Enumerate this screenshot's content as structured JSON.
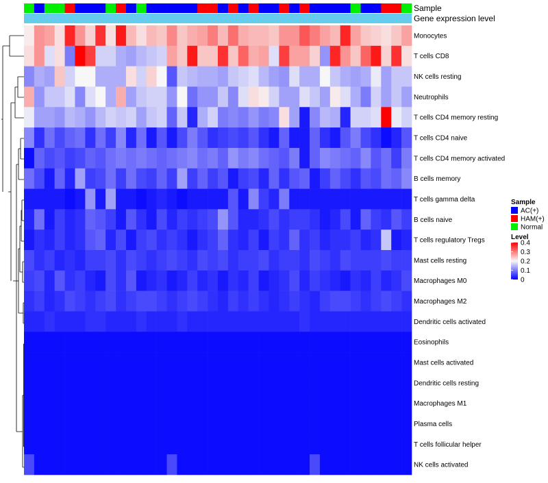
{
  "chart_data": {
    "type": "heatmap",
    "title": "",
    "annotation_tracks": [
      "Sample",
      "Gene expression level"
    ],
    "sample_groups": [
      {
        "name": "AC(+)",
        "color": "#0000ff"
      },
      {
        "name": "HAM(+)",
        "color": "#ff0000"
      },
      {
        "name": "Normal",
        "color": "#00ee00"
      }
    ],
    "column_samples": [
      "N",
      "A",
      "N",
      "N",
      "H",
      "A",
      "A",
      "A",
      "N",
      "H",
      "A",
      "N",
      "A",
      "A",
      "A",
      "A",
      "A",
      "H",
      "H",
      "A",
      "H",
      "A",
      "H",
      "A",
      "A",
      "H",
      "A",
      "H",
      "A",
      "A",
      "A",
      "A",
      "N",
      "A",
      "A",
      "H",
      "H",
      "N"
    ],
    "expression_bar_color": "#66ccee",
    "legend": {
      "sample_title": "Sample",
      "level_title": "Level",
      "level_ticks": [
        "0.4",
        "0.3",
        "0.2",
        "0.1",
        "0"
      ],
      "colors": {
        "low": "#0000ff",
        "mid": "#f7f7f7",
        "high": "#ff0000"
      },
      "range": [
        0,
        0.4
      ]
    },
    "rows": [
      "Monocytes",
      "T cells CD8",
      "NK cells resting",
      "Neutrophils",
      "T cells CD4 memory resting",
      "T cells CD4 naive",
      "T cells CD4 memory activated",
      "B cells memory",
      "T cells gamma delta",
      "B cells naive",
      "T cells regulatory  Tregs",
      "Mast cells resting",
      "Macrophages M0",
      "Macrophages M2",
      "Dendritic cells activated",
      "Eosinophils",
      "Mast cells activated",
      "Dendritic cells resting",
      "Macrophages M1",
      "Plasma cells",
      "T cells follicular helper",
      "NK cells activated"
    ],
    "values": [
      [
        0.21,
        0.28,
        0.27,
        0.22,
        0.37,
        0.28,
        0.23,
        0.36,
        0.22,
        0.38,
        0.25,
        0.22,
        0.25,
        0.24,
        0.29,
        0.24,
        0.26,
        0.27,
        0.3,
        0.25,
        0.31,
        0.26,
        0.25,
        0.25,
        0.24,
        0.28,
        0.28,
        0.33,
        0.3,
        0.27,
        0.25,
        0.37,
        0.27,
        0.24,
        0.23,
        0.22,
        0.24,
        0.27
      ],
      [
        0.22,
        0.28,
        0.18,
        0.22,
        0.1,
        0.4,
        0.35,
        0.17,
        0.17,
        0.14,
        0.13,
        0.15,
        0.16,
        0.17,
        0.27,
        0.24,
        0.38,
        0.24,
        0.24,
        0.36,
        0.24,
        0.32,
        0.26,
        0.27,
        0.18,
        0.35,
        0.27,
        0.27,
        0.23,
        0.12,
        0.37,
        0.28,
        0.24,
        0.32,
        0.38,
        0.23,
        0.36,
        0.22
      ],
      [
        0.11,
        0.14,
        0.13,
        0.24,
        0.17,
        0.2,
        0.2,
        0.14,
        0.14,
        0.14,
        0.22,
        0.17,
        0.23,
        0.2,
        0.07,
        0.16,
        0.15,
        0.14,
        0.14,
        0.13,
        0.16,
        0.17,
        0.18,
        0.15,
        0.13,
        0.12,
        0.18,
        0.14,
        0.14,
        0.2,
        0.16,
        0.14,
        0.13,
        0.14,
        0.19,
        0.13,
        0.16,
        0.16
      ],
      [
        0.26,
        0.12,
        0.16,
        0.16,
        0.18,
        0.11,
        0.18,
        0.2,
        0.14,
        0.26,
        0.13,
        0.16,
        0.17,
        0.17,
        0.12,
        0.2,
        0.09,
        0.12,
        0.12,
        0.16,
        0.11,
        0.18,
        0.22,
        0.21,
        0.17,
        0.13,
        0.13,
        0.18,
        0.16,
        0.13,
        0.21,
        0.18,
        0.14,
        0.1,
        0.17,
        0.13,
        0.16,
        0.13
      ],
      [
        0.19,
        0.13,
        0.13,
        0.12,
        0.15,
        0.14,
        0.12,
        0.15,
        0.17,
        0.16,
        0.17,
        0.13,
        0.16,
        0.17,
        0.08,
        0.16,
        0.03,
        0.14,
        0.17,
        0.1,
        0.11,
        0.1,
        0.12,
        0.1,
        0.11,
        0.22,
        0.13,
        0.02,
        0.11,
        0.15,
        0.14,
        0.03,
        0.17,
        0.17,
        0.18,
        0.4,
        0.19,
        0.17
      ],
      [
        0.11,
        0.04,
        0.09,
        0.06,
        0.08,
        0.09,
        0.04,
        0.09,
        0.05,
        0.11,
        0.03,
        0.09,
        0.02,
        0.07,
        0.02,
        0.06,
        0.1,
        0.07,
        0.04,
        0.05,
        0.06,
        0.05,
        0.07,
        0.04,
        0.02,
        0.08,
        0.02,
        0.02,
        0.08,
        0.04,
        0.02,
        0.07,
        0.1,
        0.06,
        0.04,
        0.01,
        0.03,
        0.07
      ],
      [
        0.01,
        0.08,
        0.06,
        0.07,
        0.05,
        0.06,
        0.08,
        0.07,
        0.09,
        0.1,
        0.09,
        0.1,
        0.09,
        0.08,
        0.09,
        0.1,
        0.11,
        0.09,
        0.1,
        0.08,
        0.12,
        0.1,
        0.11,
        0.09,
        0.08,
        0.07,
        0.1,
        0.02,
        0.08,
        0.11,
        0.1,
        0.09,
        0.08,
        0.11,
        0.07,
        0.09,
        0.05,
        0.1
      ],
      [
        0.09,
        0.06,
        0.02,
        0.08,
        0.03,
        0.13,
        0.05,
        0.06,
        0.09,
        0.05,
        0.09,
        0.06,
        0.05,
        0.08,
        0.05,
        0.13,
        0.05,
        0.08,
        0.05,
        0.07,
        0.02,
        0.05,
        0.06,
        0.03,
        0.08,
        0.04,
        0.07,
        0.08,
        0.02,
        0.05,
        0.08,
        0.06,
        0.04,
        0.07,
        0.06,
        0.09,
        0.08,
        0.11
      ],
      [
        0.02,
        0.02,
        0.02,
        0.02,
        0.01,
        0.02,
        0.12,
        0.02,
        0.13,
        0.02,
        0.02,
        0.01,
        0.02,
        0.03,
        0.02,
        0.01,
        0.02,
        0.02,
        0.02,
        0.02,
        0.07,
        0.02,
        0.11,
        0.05,
        0.03,
        0.1,
        0.02,
        0.02,
        0.02,
        0.02,
        0.02,
        0.02,
        0.02,
        0.02,
        0.02,
        0.02,
        0.02,
        0.02
      ],
      [
        0.03,
        0.09,
        0.02,
        0.05,
        0.03,
        0.04,
        0.08,
        0.07,
        0.05,
        0.02,
        0.07,
        0.04,
        0.02,
        0.06,
        0.03,
        0.05,
        0.04,
        0.05,
        0.06,
        0.12,
        0.07,
        0.03,
        0.03,
        0.04,
        0.06,
        0.04,
        0.05,
        0.05,
        0.04,
        0.02,
        0.03,
        0.06,
        0.02,
        0.08,
        0.05,
        0.04,
        0.07,
        0.05
      ],
      [
        0.02,
        0.04,
        0.03,
        0.05,
        0.03,
        0.04,
        0.07,
        0.08,
        0.03,
        0.06,
        0.02,
        0.05,
        0.06,
        0.04,
        0.05,
        0.04,
        0.02,
        0.04,
        0.05,
        0.08,
        0.04,
        0.03,
        0.05,
        0.02,
        0.05,
        0.04,
        0.08,
        0.04,
        0.05,
        0.03,
        0.04,
        0.04,
        0.05,
        0.03,
        0.04,
        0.16,
        0.02,
        0.03
      ],
      [
        0.06,
        0.04,
        0.05,
        0.03,
        0.04,
        0.03,
        0.05,
        0.05,
        0.06,
        0.04,
        0.06,
        0.05,
        0.04,
        0.05,
        0.06,
        0.05,
        0.04,
        0.06,
        0.05,
        0.06,
        0.04,
        0.05,
        0.05,
        0.06,
        0.04,
        0.05,
        0.05,
        0.04,
        0.06,
        0.05,
        0.04,
        0.06,
        0.05,
        0.05,
        0.05,
        0.06,
        0.05,
        0.05
      ],
      [
        0.05,
        0.06,
        0.03,
        0.07,
        0.04,
        0.05,
        0.03,
        0.02,
        0.06,
        0.04,
        0.07,
        0.02,
        0.03,
        0.04,
        0.02,
        0.03,
        0.05,
        0.03,
        0.04,
        0.02,
        0.04,
        0.03,
        0.05,
        0.02,
        0.03,
        0.04,
        0.06,
        0.03,
        0.05,
        0.04,
        0.03,
        0.02,
        0.04,
        0.03,
        0.05,
        0.03,
        0.04,
        0.06
      ],
      [
        0.04,
        0.05,
        0.03,
        0.04,
        0.06,
        0.05,
        0.04,
        0.05,
        0.06,
        0.04,
        0.05,
        0.06,
        0.06,
        0.05,
        0.04,
        0.05,
        0.06,
        0.05,
        0.04,
        0.03,
        0.05,
        0.04,
        0.05,
        0.04,
        0.03,
        0.04,
        0.05,
        0.04,
        0.03,
        0.05,
        0.06,
        0.06,
        0.05,
        0.04,
        0.05,
        0.06,
        0.05,
        0.04
      ],
      [
        0.03,
        0.03,
        0.04,
        0.03,
        0.03,
        0.03,
        0.04,
        0.04,
        0.03,
        0.03,
        0.03,
        0.04,
        0.03,
        0.03,
        0.03,
        0.04,
        0.03,
        0.03,
        0.03,
        0.03,
        0.03,
        0.03,
        0.03,
        0.03,
        0.03,
        0.03,
        0.03,
        0.04,
        0.03,
        0.03,
        0.03,
        0.03,
        0.03,
        0.03,
        0.03,
        0.03,
        0.03,
        0.03
      ],
      [
        0.01,
        0.01,
        0.01,
        0.01,
        0.01,
        0.01,
        0.01,
        0.01,
        0.01,
        0.01,
        0.01,
        0.01,
        0.01,
        0.01,
        0.01,
        0.01,
        0.01,
        0.01,
        0.01,
        0.01,
        0.01,
        0.01,
        0.01,
        0.01,
        0.01,
        0.01,
        0.01,
        0.01,
        0.01,
        0.01,
        0.01,
        0.01,
        0.01,
        0.01,
        0.01,
        0.01,
        0.01,
        0.01
      ],
      [
        0.01,
        0.01,
        0.01,
        0.01,
        0.01,
        0.01,
        0.01,
        0.01,
        0.01,
        0.01,
        0.01,
        0.01,
        0.01,
        0.01,
        0.01,
        0.01,
        0.01,
        0.01,
        0.01,
        0.01,
        0.01,
        0.01,
        0.01,
        0.01,
        0.01,
        0.01,
        0.01,
        0.01,
        0.01,
        0.01,
        0.01,
        0.01,
        0.01,
        0.01,
        0.01,
        0.01,
        0.01,
        0.01
      ],
      [
        0.01,
        0.01,
        0.01,
        0.01,
        0.01,
        0.01,
        0.01,
        0.01,
        0.01,
        0.01,
        0.01,
        0.01,
        0.01,
        0.01,
        0.01,
        0.01,
        0.01,
        0.01,
        0.01,
        0.01,
        0.01,
        0.01,
        0.01,
        0.01,
        0.01,
        0.01,
        0.01,
        0.01,
        0.01,
        0.01,
        0.01,
        0.01,
        0.01,
        0.01,
        0.01,
        0.01,
        0.01,
        0.01
      ],
      [
        0.01,
        0.01,
        0.01,
        0.01,
        0.01,
        0.01,
        0.01,
        0.01,
        0.01,
        0.01,
        0.01,
        0.01,
        0.01,
        0.01,
        0.01,
        0.01,
        0.01,
        0.01,
        0.01,
        0.01,
        0.01,
        0.01,
        0.01,
        0.01,
        0.01,
        0.01,
        0.01,
        0.01,
        0.01,
        0.01,
        0.01,
        0.01,
        0.01,
        0.01,
        0.01,
        0.01,
        0.01,
        0.01
      ],
      [
        0.01,
        0.01,
        0.01,
        0.01,
        0.01,
        0.01,
        0.01,
        0.01,
        0.01,
        0.01,
        0.01,
        0.01,
        0.01,
        0.01,
        0.01,
        0.01,
        0.01,
        0.01,
        0.01,
        0.01,
        0.01,
        0.01,
        0.01,
        0.01,
        0.01,
        0.01,
        0.01,
        0.01,
        0.01,
        0.01,
        0.01,
        0.01,
        0.01,
        0.01,
        0.01,
        0.01,
        0.01,
        0.01
      ],
      [
        0.01,
        0.01,
        0.01,
        0.01,
        0.01,
        0.01,
        0.01,
        0.01,
        0.01,
        0.01,
        0.01,
        0.01,
        0.01,
        0.01,
        0.01,
        0.01,
        0.01,
        0.01,
        0.01,
        0.01,
        0.01,
        0.01,
        0.01,
        0.01,
        0.01,
        0.01,
        0.01,
        0.01,
        0.01,
        0.01,
        0.01,
        0.01,
        0.01,
        0.01,
        0.01,
        0.01,
        0.01,
        0.01
      ],
      [
        0.06,
        0.01,
        0.01,
        0.01,
        0.01,
        0.01,
        0.01,
        0.01,
        0.01,
        0.01,
        0.01,
        0.01,
        0.01,
        0.01,
        0.06,
        0.01,
        0.01,
        0.01,
        0.01,
        0.01,
        0.01,
        0.01,
        0.01,
        0.01,
        0.01,
        0.01,
        0.01,
        0.01,
        0.06,
        0.01,
        0.01,
        0.01,
        0.01,
        0.01,
        0.01,
        0.01,
        0.01,
        0.01
      ]
    ]
  }
}
